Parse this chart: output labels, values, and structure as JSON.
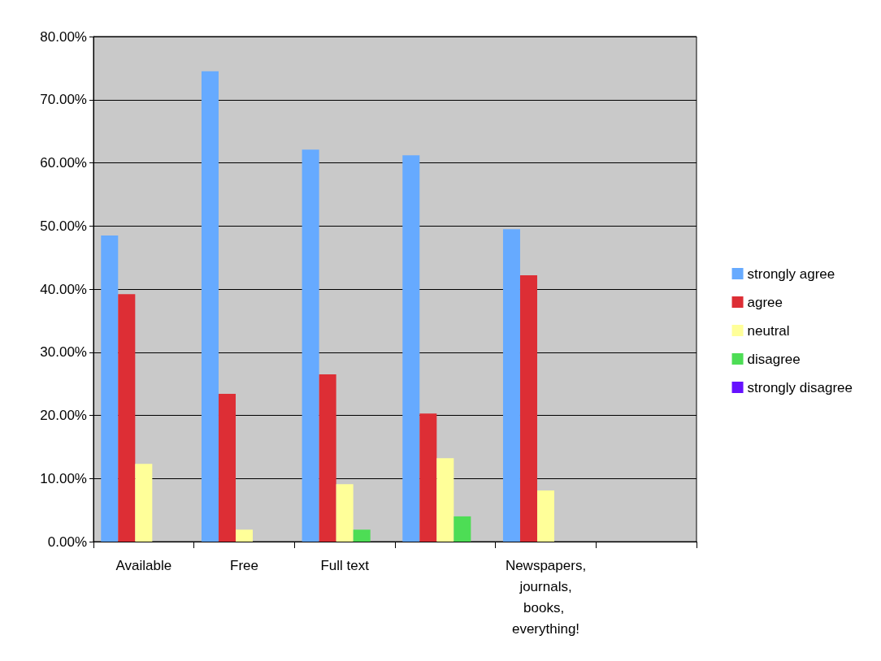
{
  "chart_data": {
    "type": "bar",
    "categories": [
      "Available",
      "Free",
      "Full text",
      null,
      "Newspapers, journals, books, everything!",
      null
    ],
    "series": [
      {
        "name": "strongly agree",
        "color": "#66aaff",
        "values": [
          48.5,
          74.5,
          62.1,
          61.2,
          49.5,
          null
        ]
      },
      {
        "name": "agree",
        "color": "#dd2e35",
        "values": [
          39.2,
          23.4,
          26.5,
          20.3,
          42.2,
          null
        ]
      },
      {
        "name": "neutral",
        "color": "#ffff99",
        "values": [
          12.3,
          1.9,
          9.1,
          13.2,
          8.1,
          null
        ]
      },
      {
        "name": "disagree",
        "color": "#4ddd55",
        "values": [
          0,
          0,
          1.9,
          4.0,
          0,
          null
        ]
      },
      {
        "name": "strongly disagree",
        "color": "#6611ff",
        "values": [
          0,
          0,
          0,
          0,
          0,
          null
        ]
      }
    ],
    "ylim": [
      0,
      80
    ],
    "yticks": [
      {
        "value": 0,
        "label": "0.00%"
      },
      {
        "value": 10,
        "label": "10.00%"
      },
      {
        "value": 20,
        "label": "20.00%"
      },
      {
        "value": 30,
        "label": "30.00%"
      },
      {
        "value": 40,
        "label": "40.00%"
      },
      {
        "value": 50,
        "label": "50.00%"
      },
      {
        "value": 60,
        "label": "60.00%"
      },
      {
        "value": 70,
        "label": "70.00%"
      },
      {
        "value": 80,
        "label": "80.00%"
      }
    ],
    "grid": "y",
    "legend": "right"
  }
}
